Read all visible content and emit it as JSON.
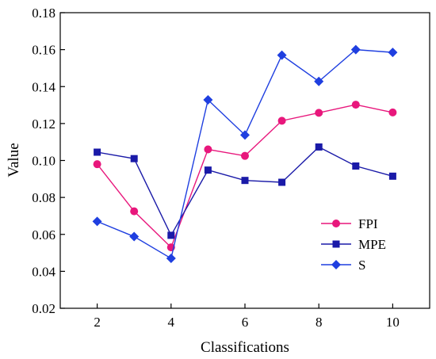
{
  "chart_data": {
    "type": "line",
    "xlabel": "Classifications",
    "ylabel": "Value",
    "xlim": [
      1,
      11
    ],
    "ylim": [
      0.02,
      0.18
    ],
    "xticks": [
      2,
      4,
      6,
      8,
      10
    ],
    "yticks": [
      0.02,
      0.04,
      0.06,
      0.08,
      0.1,
      0.12,
      0.14,
      0.16,
      0.18
    ],
    "ytick_labels": [
      "0.02",
      "0.04",
      "0.06",
      "0.08",
      "0.10",
      "0.12",
      "0.14",
      "0.16",
      "0.18"
    ],
    "x": [
      2,
      3,
      4,
      5,
      6,
      7,
      8,
      9,
      10
    ],
    "grid": false,
    "legend_position": "lower-right",
    "series": [
      {
        "name": "FPI",
        "color": "#e8177c",
        "marker": "circle",
        "values": [
          0.098,
          0.0725,
          0.053,
          0.106,
          0.1025,
          0.1215,
          0.1258,
          0.1302,
          0.126
        ]
      },
      {
        "name": "MPE",
        "color": "#1a1aa8",
        "marker": "square",
        "values": [
          0.1045,
          0.101,
          0.0595,
          0.0948,
          0.0892,
          0.0882,
          0.1073,
          0.097,
          0.0915
        ]
      },
      {
        "name": "S",
        "color": "#1f3fe0",
        "marker": "diamond",
        "values": [
          0.067,
          0.0588,
          0.047,
          0.1328,
          0.1138,
          0.157,
          0.1428,
          0.16,
          0.1585
        ]
      }
    ]
  }
}
